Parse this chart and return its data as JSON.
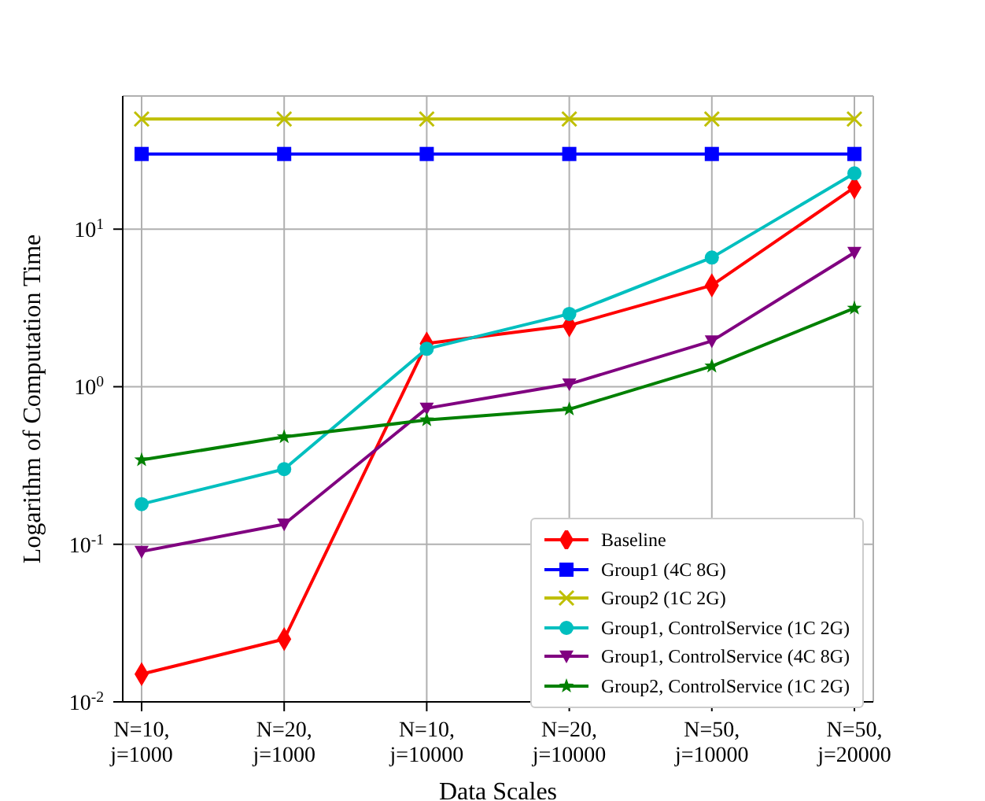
{
  "chart_data": {
    "type": "line",
    "xlabel": "Data Scales",
    "ylabel": "Logarithm of Computation Time",
    "categories": [
      "N=10,\nj=1000",
      "N=20,\nj=1000",
      "N=10,\nj=10000",
      "N=20,\nj=10000",
      "N=50,\nj=10000",
      "N=50,\nj=20000"
    ],
    "log": true,
    "ylim": [
      0.01,
      70
    ],
    "yticks": [
      {
        "value": 0.01,
        "label": "10$^{-2}$"
      },
      {
        "value": 0.1,
        "label": "10$^{-1}$"
      },
      {
        "value": 1,
        "label": "10$^{0}$"
      },
      {
        "value": 10,
        "label": "10$^{1}$"
      }
    ],
    "grid": true,
    "legend": "bottom right",
    "series": [
      {
        "name": "Baseline",
        "color": "#ff0000",
        "marker": "diamond",
        "values": [
          0.015,
          0.025,
          1.88,
          2.45,
          4.4,
          18.4
        ]
      },
      {
        "name": "Group1 (4C 8G)",
        "color": "#0000ff",
        "marker": "square",
        "values": [
          30,
          30,
          30,
          30,
          30,
          30
        ]
      },
      {
        "name": "Group2 (1C 2G)",
        "color": "#bfbf00",
        "marker": "cross",
        "values": [
          50,
          50,
          50,
          50,
          50,
          50
        ]
      },
      {
        "name": "Group1, ControlService (1C 2G)",
        "color": "#00bfbf",
        "marker": "circle",
        "values": [
          0.18,
          0.3,
          1.74,
          2.9,
          6.6,
          22.6
        ]
      },
      {
        "name": "Group1, ControlService (4C 8G)",
        "color": "#800080",
        "marker": "triangle",
        "values": [
          0.09,
          0.134,
          0.73,
          1.04,
          1.95,
          7.1
        ]
      },
      {
        "name": "Group2, ControlService (1C 2G)",
        "color": "#008000",
        "marker": "star",
        "values": [
          0.343,
          0.48,
          0.615,
          0.72,
          1.35,
          3.15
        ]
      }
    ]
  }
}
